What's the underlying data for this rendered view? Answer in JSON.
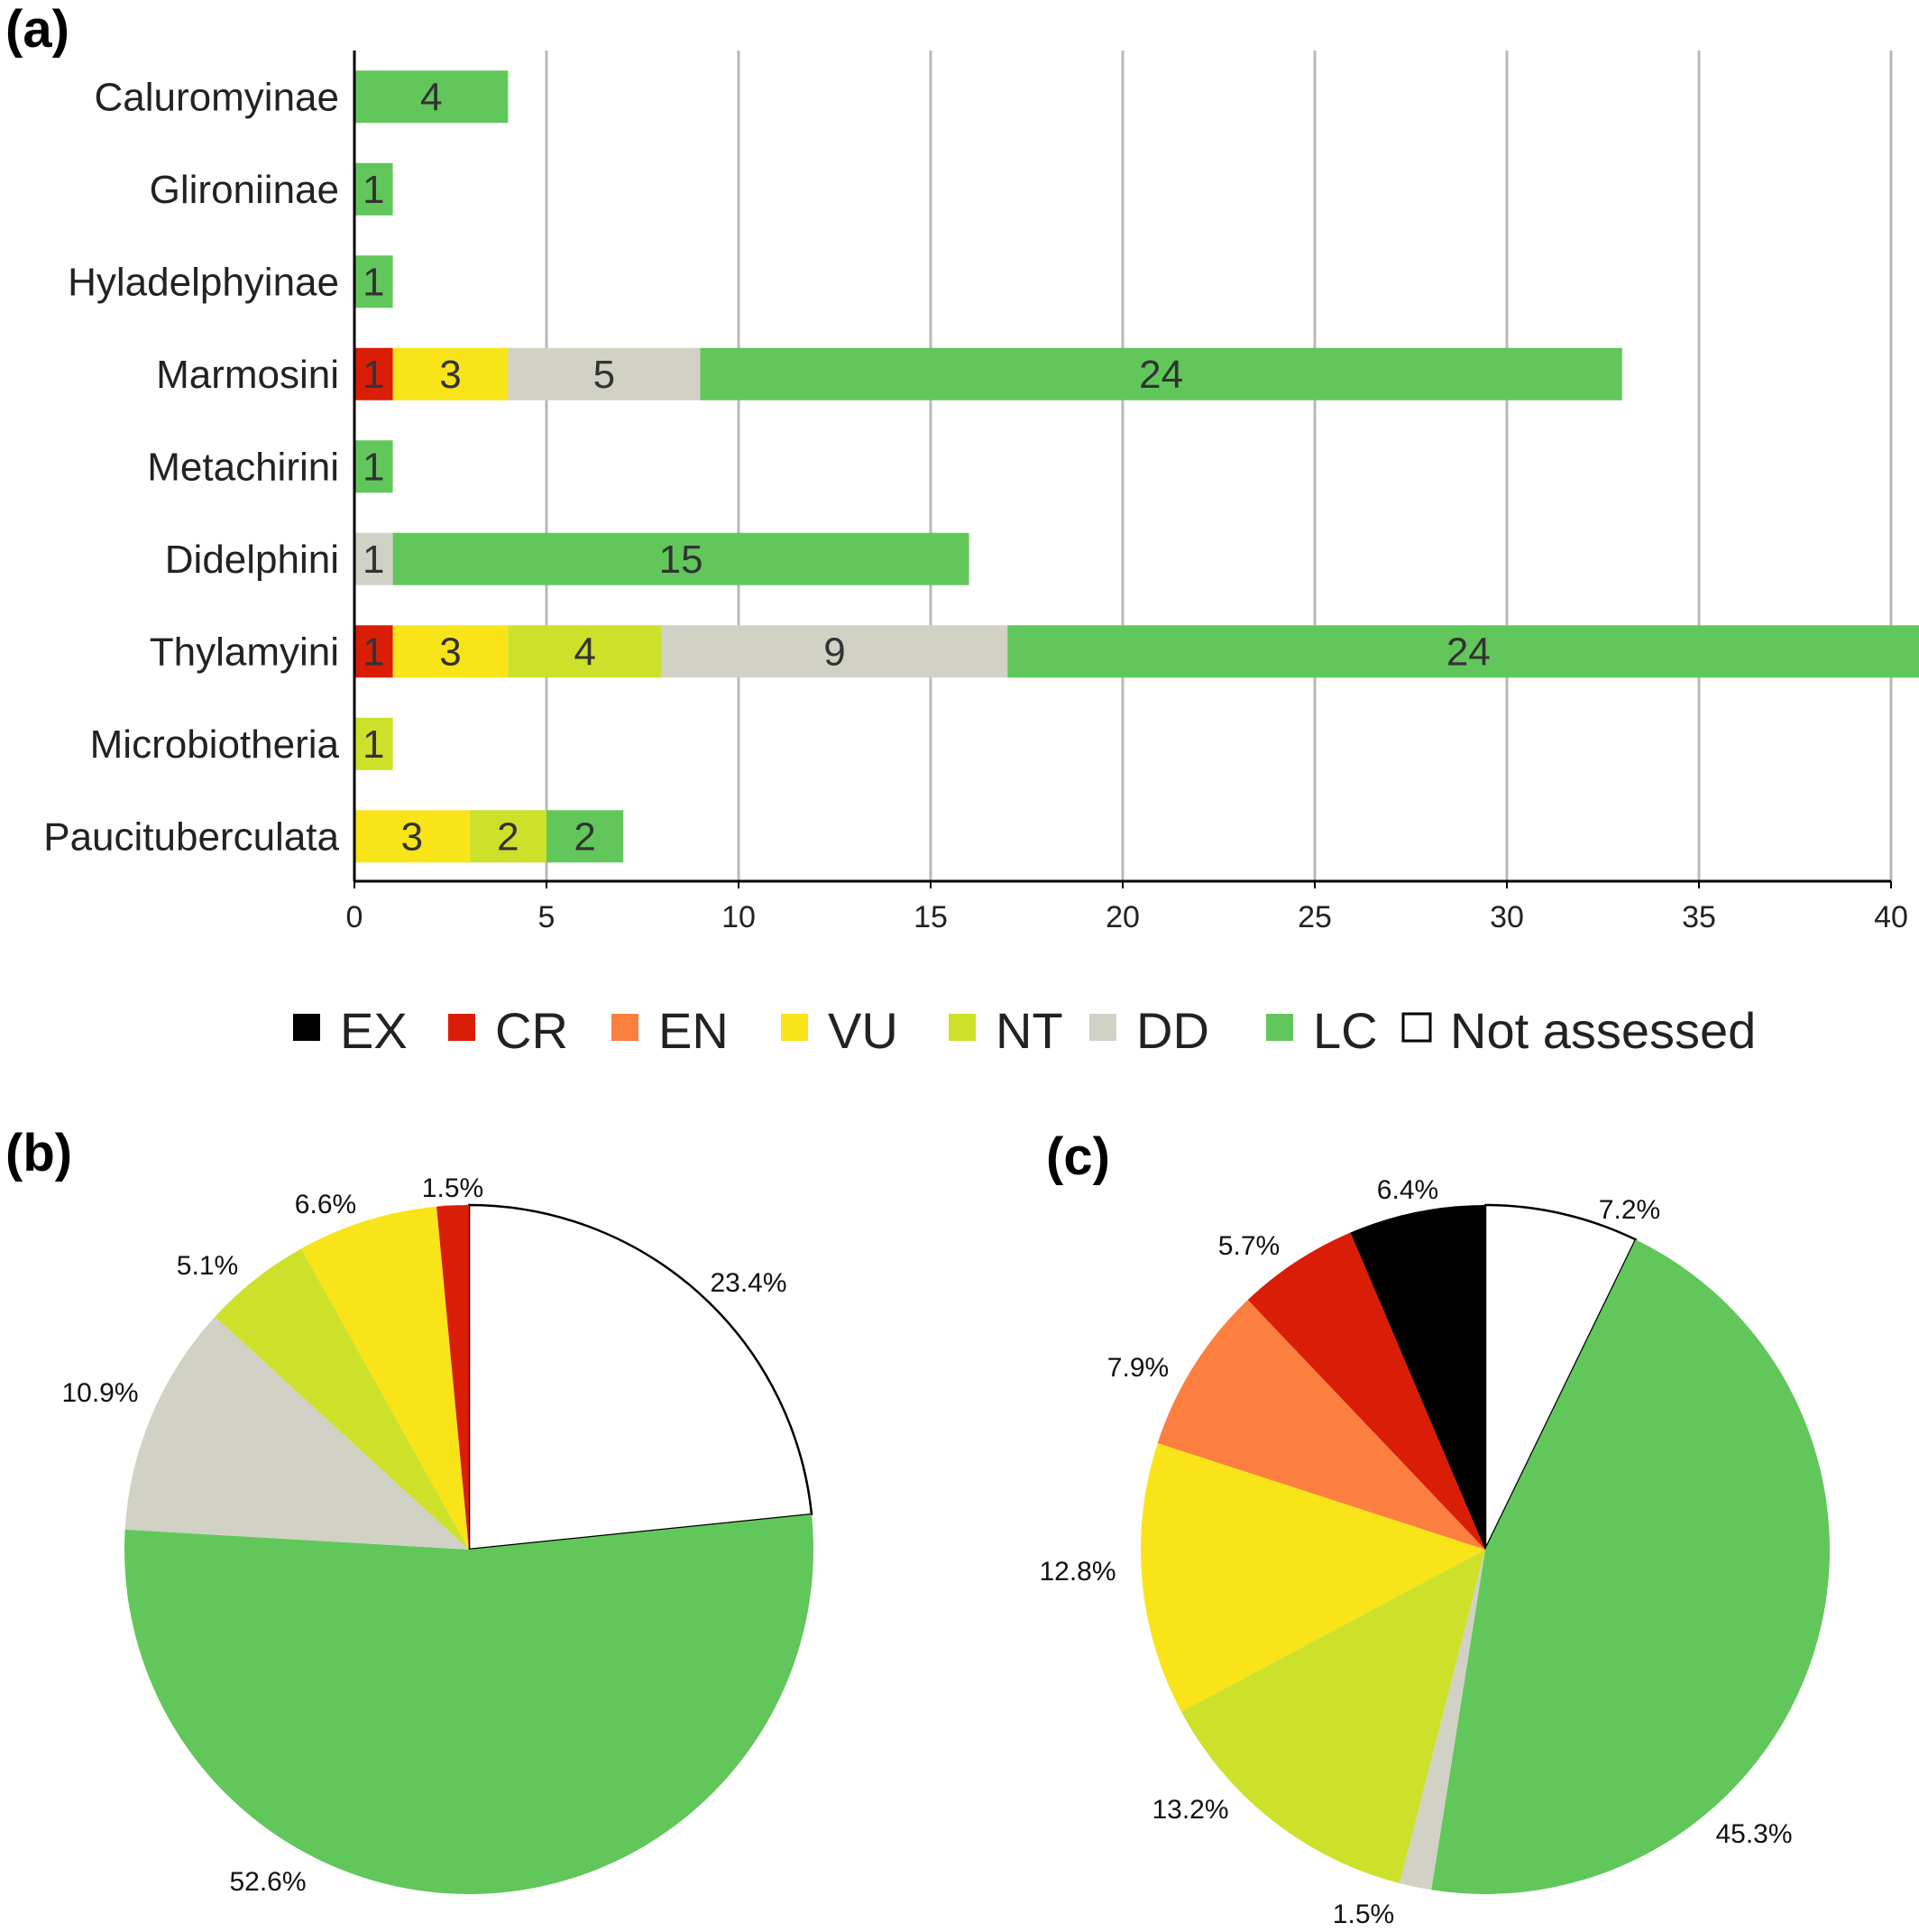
{
  "colors": {
    "EX": "#000000",
    "CR": "#d91d07",
    "EN": "#fd7f3f",
    "VU": "#f8e418",
    "NT": "#cde12a",
    "DD": "#d1d1c6",
    "LC": "#61c75b",
    "Not assessed": "#ffffff"
  },
  "legend": {
    "items": [
      {
        "key": "EX",
        "label": "EX"
      },
      {
        "key": "CR",
        "label": "CR"
      },
      {
        "key": "EN",
        "label": "EN"
      },
      {
        "key": "VU",
        "label": "VU"
      },
      {
        "key": "NT",
        "label": "NT"
      },
      {
        "key": "DD",
        "label": "DD"
      },
      {
        "key": "LC",
        "label": "LC"
      },
      {
        "key": "Not assessed",
        "label": "Not assessed"
      }
    ]
  },
  "chart_data": [
    {
      "panel": "(a)",
      "type": "bar",
      "orientation": "horizontal",
      "stacked": true,
      "xlim": [
        0,
        40
      ],
      "x_ticks": [
        0,
        5,
        10,
        15,
        20,
        25,
        30,
        35,
        40
      ],
      "grid": "vertical",
      "categories": [
        "Caluromyinae",
        "Glironiinae",
        "Hyladelphyinae",
        "Marmosini",
        "Metachirini",
        "Didelphini",
        "Thylamyini",
        "Microbiotheria",
        "Paucituberculata"
      ],
      "series": [
        {
          "name": "CR",
          "values": [
            0,
            0,
            0,
            1,
            0,
            0,
            1,
            0,
            0
          ]
        },
        {
          "name": "VU",
          "values": [
            0,
            0,
            0,
            3,
            0,
            0,
            3,
            0,
            3
          ]
        },
        {
          "name": "NT",
          "values": [
            0,
            0,
            0,
            0,
            0,
            0,
            4,
            1,
            2
          ]
        },
        {
          "name": "DD",
          "values": [
            0,
            0,
            0,
            5,
            0,
            1,
            9,
            0,
            0
          ]
        },
        {
          "name": "LC",
          "values": [
            4,
            1,
            1,
            24,
            1,
            15,
            24,
            0,
            2
          ]
        }
      ]
    },
    {
      "panel": "(b)",
      "type": "pie",
      "slices": [
        {
          "category": "Not assessed",
          "value": 23.4,
          "label": "23.4%"
        },
        {
          "category": "LC",
          "value": 52.6,
          "label": "52.6%"
        },
        {
          "category": "DD",
          "value": 10.9,
          "label": "10.9%"
        },
        {
          "category": "NT",
          "value": 5.1,
          "label": "5.1%"
        },
        {
          "category": "VU",
          "value": 6.6,
          "label": "6.6%"
        },
        {
          "category": "CR",
          "value": 1.5,
          "label": "1.5%"
        }
      ]
    },
    {
      "panel": "(c)",
      "type": "pie",
      "slices": [
        {
          "category": "Not assessed",
          "value": 7.2,
          "label": "7.2%"
        },
        {
          "category": "LC",
          "value": 45.3,
          "label": "45.3%"
        },
        {
          "category": "DD",
          "value": 1.5,
          "label": "1.5%"
        },
        {
          "category": "NT",
          "value": 13.2,
          "label": "13.2%"
        },
        {
          "category": "VU",
          "value": 12.8,
          "label": "12.8%"
        },
        {
          "category": "EN",
          "value": 7.9,
          "label": "7.9%"
        },
        {
          "category": "CR",
          "value": 5.7,
          "label": "5.7%"
        },
        {
          "category": "EX",
          "value": 6.4,
          "label": "6.4%"
        }
      ]
    }
  ]
}
